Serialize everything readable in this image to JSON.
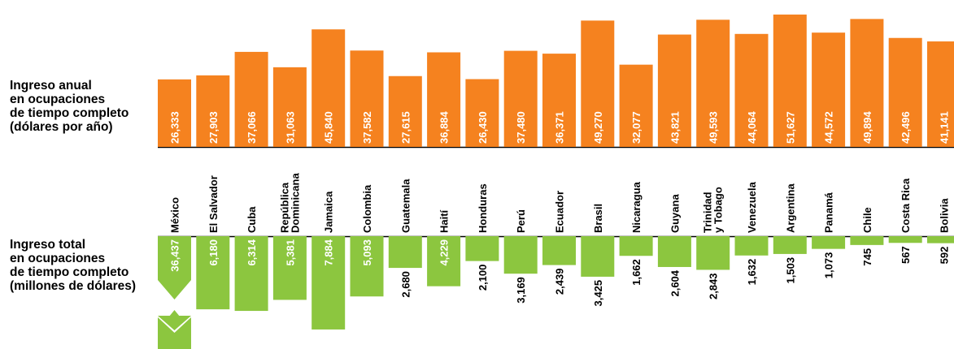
{
  "labels": {
    "top": "Ingreso anual\nen ocupaciones\nde tiempo completo\n(dólares por año)",
    "bottom": "Ingreso total\nen ocupaciones\nde tiempo completo\n(millones de dólares)"
  },
  "colors": {
    "orange": "#F5821F",
    "green": "#8CC63F",
    "text_on_bar": "#ffffff",
    "axis": "#000000"
  },
  "chart_data": [
    {
      "type": "bar",
      "title": "",
      "series_label": "Ingreso anual en ocupaciones de tiempo completo (dólares por año)",
      "categories": [
        "México",
        "El Salvador",
        "Cuba",
        "República Dominicana",
        "Jamaica",
        "Colombia",
        "Guatemala",
        "Haití",
        "Honduras",
        "Perú",
        "Ecuador",
        "Brasil",
        "Nicaragua",
        "Guyana",
        "Trinidad y Tobago",
        "Venezuela",
        "Argentina",
        "Panamá",
        "Chile",
        "Costa Rica",
        "Bolivia"
      ],
      "values": [
        26333,
        27903,
        37066,
        31063,
        45840,
        37582,
        27615,
        36884,
        26430,
        37480,
        36371,
        49270,
        32077,
        43821,
        49593,
        44064,
        51627,
        44572,
        49894,
        42496,
        41141
      ],
      "value_labels": [
        "26,333",
        "27,903",
        "37,066",
        "31,063",
        "45,840",
        "37,582",
        "27,615",
        "36,884",
        "26,430",
        "37,480",
        "36,371",
        "49,270",
        "32,077",
        "43,821",
        "49,593",
        "44,064",
        "51,627",
        "44,572",
        "49,894",
        "42,496",
        "41,141"
      ],
      "color": "#F5821F"
    },
    {
      "type": "bar",
      "title": "",
      "series_label": "Ingreso total en ocupaciones de tiempo completo (millones de dólares)",
      "categories": [
        "México",
        "El Salvador",
        "Cuba",
        "República Dominicana",
        "Jamaica",
        "Colombia",
        "Guatemala",
        "Haití",
        "Honduras",
        "Perú",
        "Ecuador",
        "Brasil",
        "Nicaragua",
        "Guyana",
        "Trinidad y Tobago",
        "Venezuela",
        "Argentina",
        "Panamá",
        "Chile",
        "Costa Rica",
        "Bolivia"
      ],
      "values": [
        36437,
        6180,
        6314,
        5381,
        7884,
        5093,
        2680,
        4229,
        2100,
        3169,
        2439,
        3425,
        1662,
        2604,
        2843,
        1632,
        1503,
        1073,
        745,
        567,
        592
      ],
      "value_labels": [
        "36,437",
        "6,180",
        "6,314",
        "5,381",
        "7,884",
        "5,093",
        "2,680",
        "4,229",
        "2,100",
        "3,169",
        "2,439",
        "3,425",
        "1,662",
        "2,604",
        "2,843",
        "1,632",
        "1,503",
        "1,073",
        "745",
        "567",
        "592"
      ],
      "axis_break": "México",
      "color": "#8CC63F"
    }
  ]
}
